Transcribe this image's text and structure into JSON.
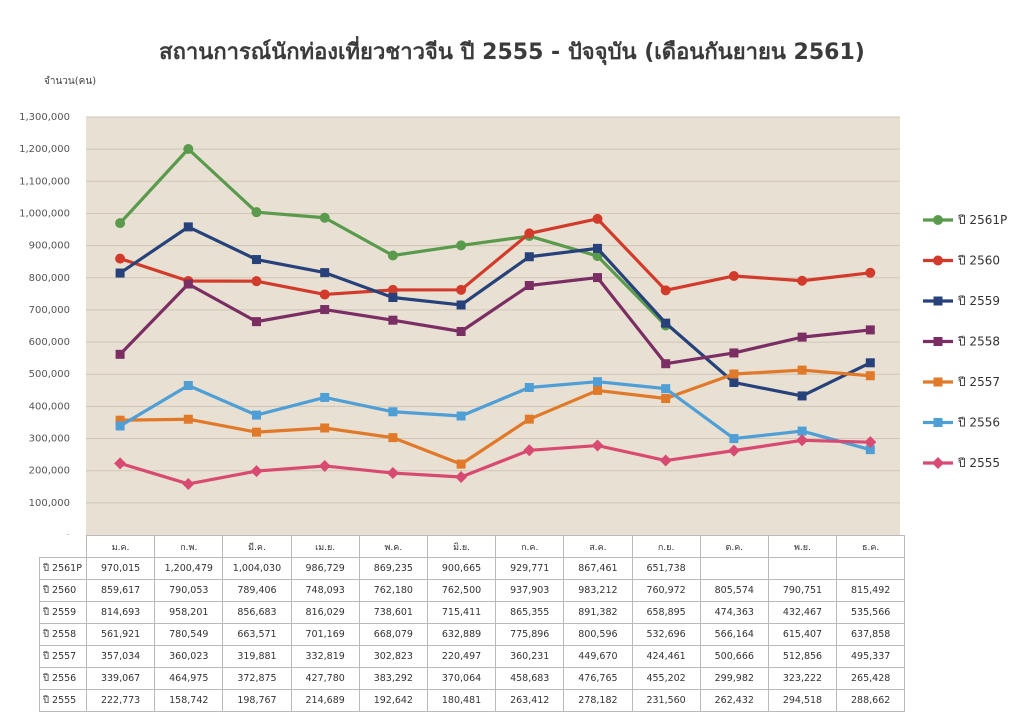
{
  "chart_data": {
    "type": "line",
    "title": "สถานการณ์นักท่องเที่ยวชาวจีน ปี 2555 - ปัจจุบัน (เดือนกันยายน 2561)",
    "ylabel": "จำนวน(คน)",
    "ylim": [
      0,
      1300000
    ],
    "yticks": [
      "-",
      "100,000",
      "200,000",
      "300,000",
      "400,000",
      "500,000",
      "600,000",
      "700,000",
      "800,000",
      "900,000",
      "1,000,000",
      "1,100,000",
      "1,200,000",
      "1,300,000"
    ],
    "categories": [
      "ม.ค.",
      "ก.พ.",
      "มี.ค.",
      "เม.ย.",
      "พ.ค.",
      "มิ.ย.",
      "ก.ค.",
      "ส.ค.",
      "ก.ย.",
      "ต.ค.",
      "พ.ย.",
      "ธ.ค."
    ],
    "grid": true,
    "legend_position": "right",
    "plot_background": "#e8e0d2",
    "series": [
      {
        "name": "ปี 2561P",
        "color": "#5a9a4c",
        "marker": "circle",
        "values": [
          970015,
          1200479,
          1004030,
          986729,
          869235,
          900665,
          929771,
          867461,
          651738,
          null,
          null,
          null
        ],
        "labels": [
          "970,015",
          "1,200,479",
          "1,004,030",
          "986,729",
          "869,235",
          "900,665",
          "929,771",
          "867,461",
          "651,738",
          "",
          "",
          ""
        ]
      },
      {
        "name": "ปี 2560",
        "color": "#d23b2b",
        "marker": "circle",
        "values": [
          859617,
          790053,
          789406,
          748093,
          762180,
          762500,
          937903,
          983212,
          760972,
          805574,
          790751,
          815492
        ],
        "labels": [
          "859,617",
          "790,053",
          "789,406",
          "748,093",
          "762,180",
          "762,500",
          "937,903",
          "983,212",
          "760,972",
          "805,574",
          "790,751",
          "815,492"
        ]
      },
      {
        "name": "ปี 2559",
        "color": "#27417a",
        "marker": "square",
        "values": [
          814693,
          958201,
          856683,
          816029,
          738601,
          715411,
          865355,
          891382,
          658895,
          474363,
          432467,
          535566
        ],
        "labels": [
          "814,693",
          "958,201",
          "856,683",
          "816,029",
          "738,601",
          "715,411",
          "865,355",
          "891,382",
          "658,895",
          "474,363",
          "432,467",
          "535,566"
        ]
      },
      {
        "name": "ปี 2558",
        "color": "#7a2e63",
        "marker": "square",
        "values": [
          561921,
          780549,
          663571,
          701169,
          668079,
          632889,
          775896,
          800596,
          532696,
          566164,
          615407,
          637858
        ],
        "labels": [
          "561,921",
          "780,549",
          "663,571",
          "701,169",
          "668,079",
          "632,889",
          "775,896",
          "800,596",
          "532,696",
          "566,164",
          "615,407",
          "637,858"
        ]
      },
      {
        "name": "ปี 2557",
        "color": "#e07a2a",
        "marker": "square",
        "values": [
          357034,
          360023,
          319881,
          332819,
          302823,
          220497,
          360231,
          449670,
          424461,
          500666,
          512856,
          495337
        ],
        "labels": [
          "357,034",
          "360,023",
          "319,881",
          "332,819",
          "302,823",
          "220,497",
          "360,231",
          "449,670",
          "424,461",
          "500,666",
          "512,856",
          "495,337"
        ]
      },
      {
        "name": "ปี 2556",
        "color": "#4f9fd6",
        "marker": "square",
        "values": [
          339067,
          464975,
          372875,
          427780,
          383292,
          370064,
          458683,
          476765,
          455202,
          299982,
          323222,
          265428
        ],
        "labels": [
          "339,067",
          "464,975",
          "372,875",
          "427,780",
          "383,292",
          "370,064",
          "458,683",
          "476,765",
          "455,202",
          "299,982",
          "323,222",
          "265,428"
        ]
      },
      {
        "name": "ปี 2555",
        "color": "#d84a72",
        "marker": "diamond",
        "values": [
          222773,
          158742,
          198767,
          214689,
          192642,
          180481,
          263412,
          278182,
          231560,
          262432,
          294518,
          288662
        ],
        "labels": [
          "222,773",
          "158,742",
          "198,767",
          "214,689",
          "192,642",
          "180,481",
          "263,412",
          "278,182",
          "231,560",
          "262,432",
          "294,518",
          "288,662"
        ]
      }
    ]
  }
}
